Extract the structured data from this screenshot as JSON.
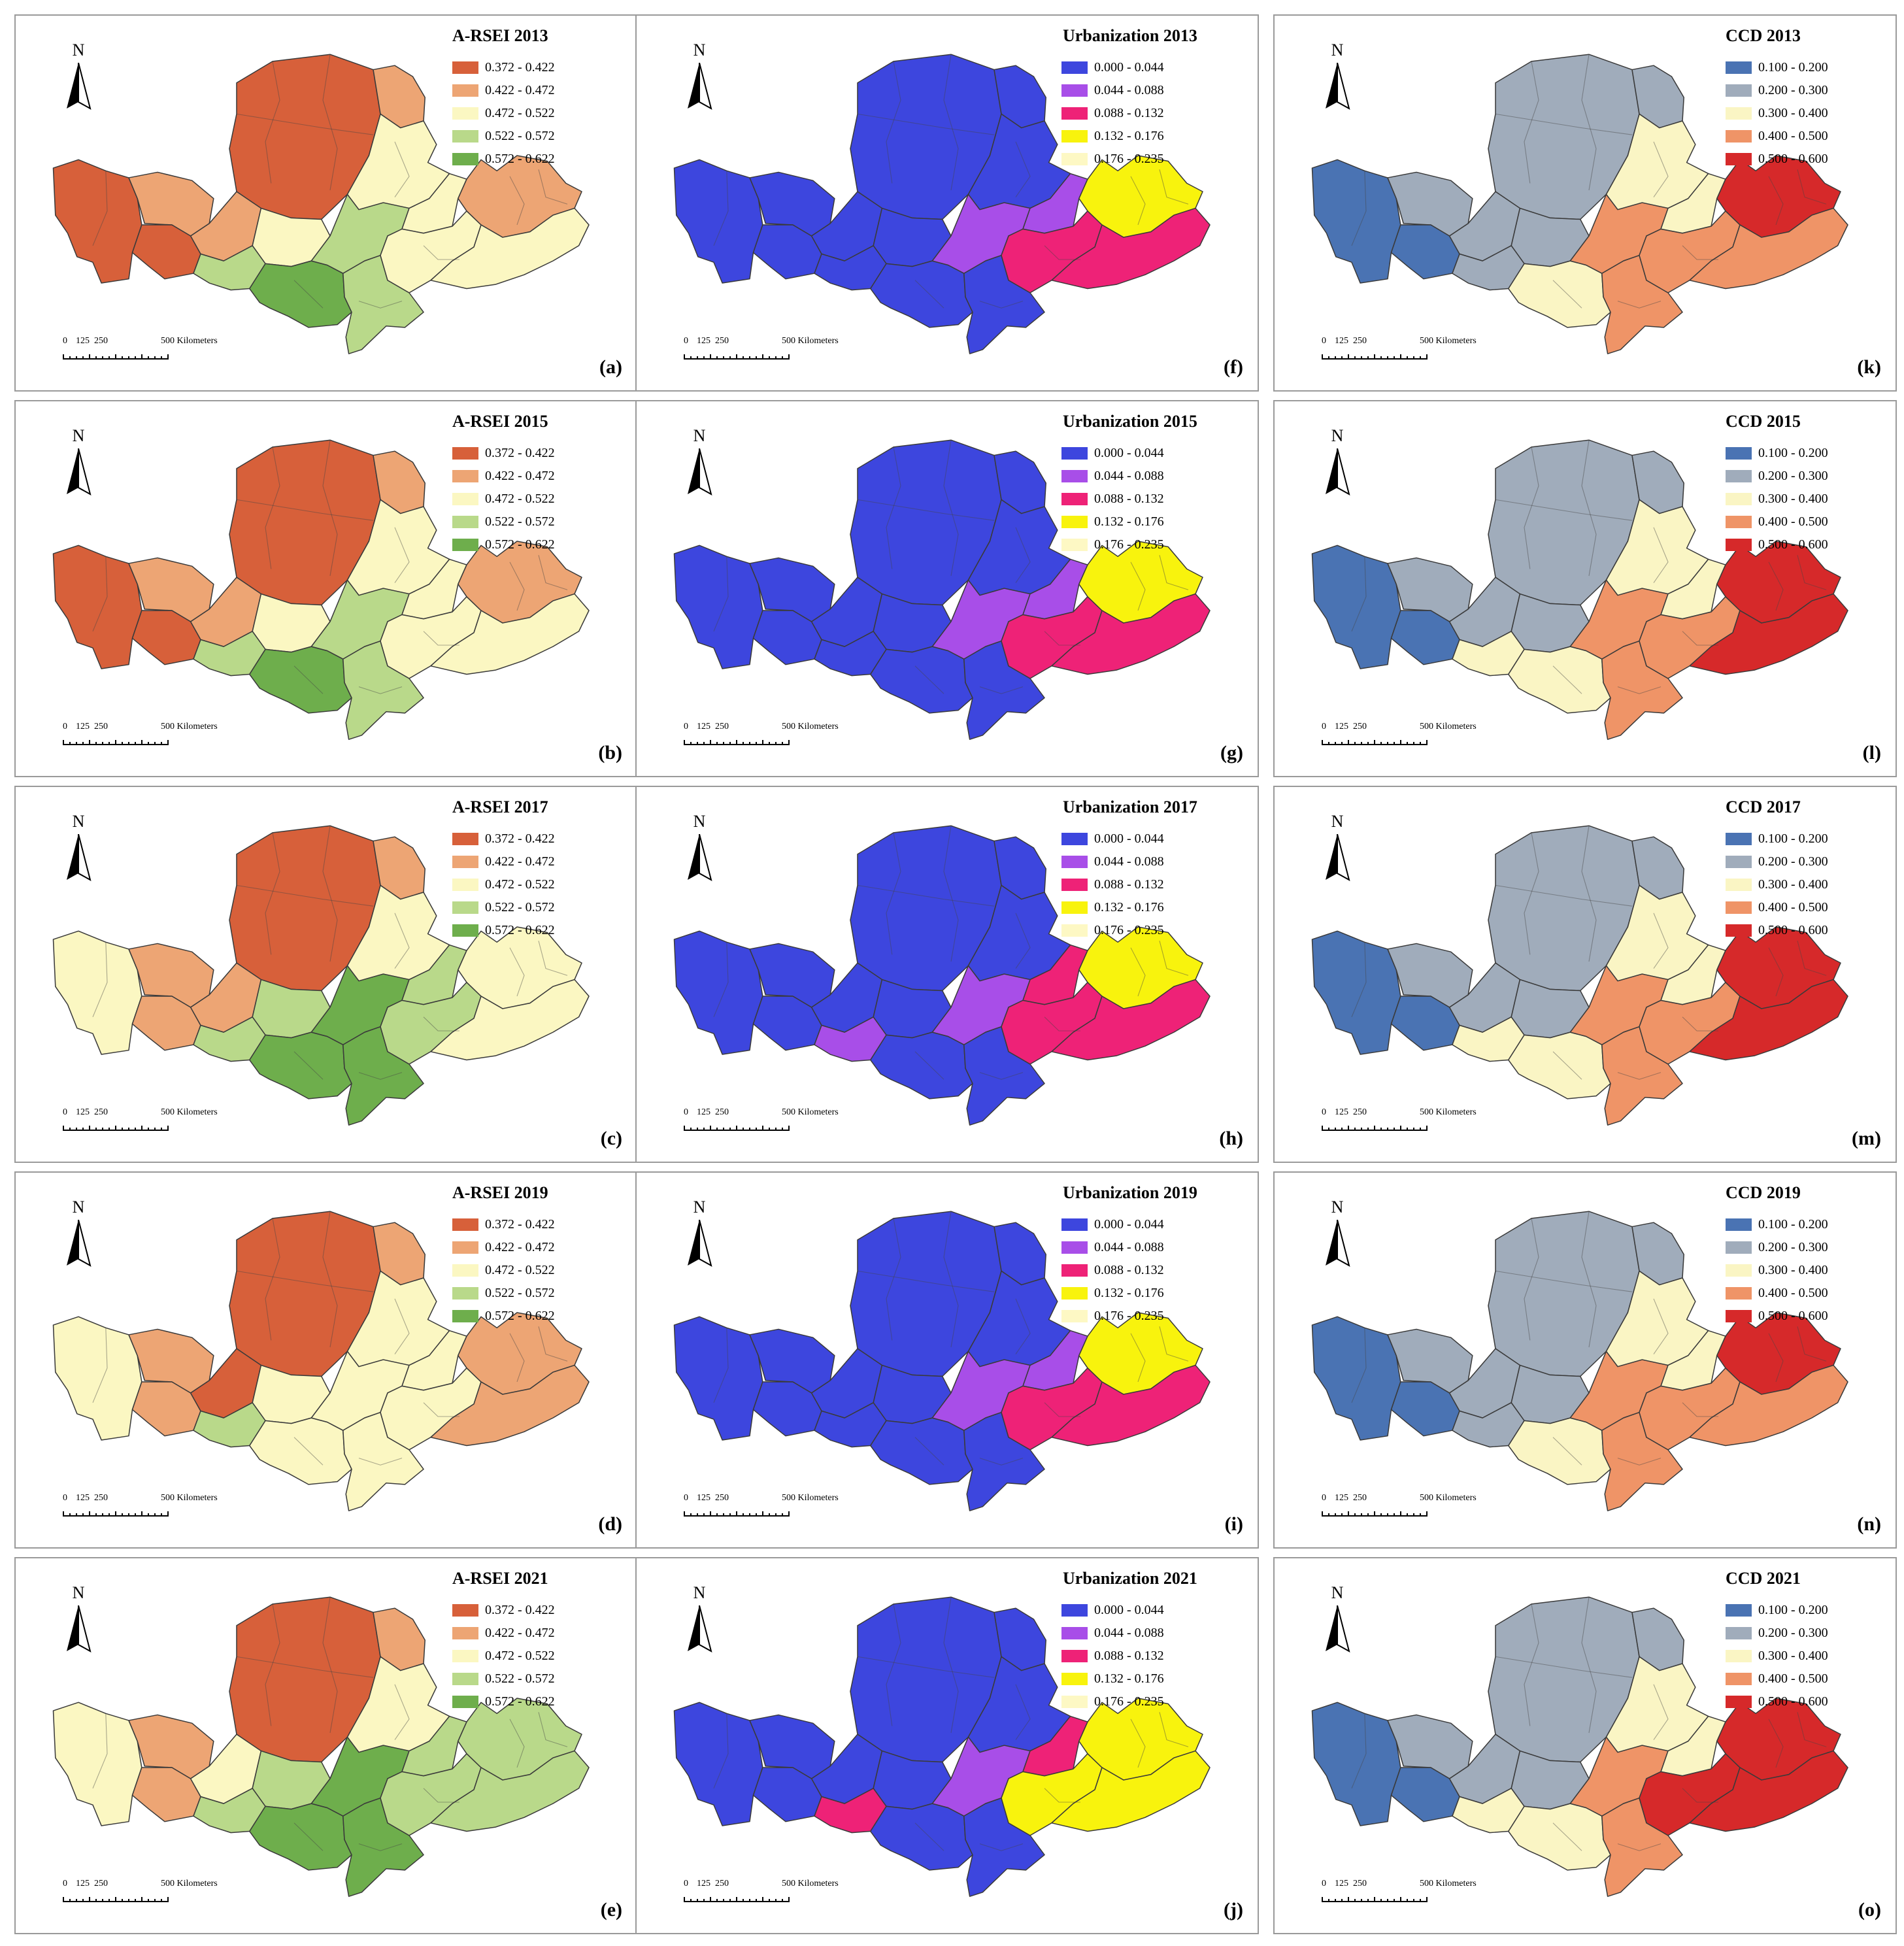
{
  "scale_bar": {
    "ticks": [
      "0",
      "125",
      "250"
    ],
    "far_label": "500 Kilometers"
  },
  "north_label": "N",
  "legends": {
    "arsei": {
      "labels": [
        "0.372 - 0.422",
        "0.422 - 0.472",
        "0.472 - 0.522",
        "0.522 - 0.572",
        "0.572 - 0.622"
      ],
      "colors": [
        "#d7603a",
        "#eda574",
        "#fbf7c2",
        "#b9d98a",
        "#6eae4c"
      ]
    },
    "urbanization": {
      "labels": [
        "0.000 - 0.044",
        "0.044 - 0.088",
        "0.088 - 0.132",
        "0.132 - 0.176",
        "0.176 - 0.235"
      ],
      "colors": [
        "#3d46de",
        "#a84ee8",
        "#ee2277",
        "#f8f30d",
        "#fdf8c4"
      ]
    },
    "ccd": {
      "labels": [
        "0.100 - 0.200",
        "0.200 - 0.300",
        "0.300 - 0.400",
        "0.400 - 0.500",
        "0.500 - 0.600"
      ],
      "colors": [
        "#4a73b3",
        "#a0acbb",
        "#faf5c4",
        "#ef9467",
        "#d6292a"
      ]
    }
  },
  "rows": [
    {
      "year": "2013",
      "arsei": {
        "title": "A-RSEI 2013",
        "label": "(a)",
        "class_idx": [
          0,
          1,
          0,
          0,
          1,
          1,
          2,
          2,
          3,
          4,
          3,
          3,
          2,
          2,
          1,
          2
        ]
      },
      "urbanization": {
        "title": "Urbanization 2013",
        "label": "(f)",
        "class_idx": [
          0,
          0,
          0,
          0,
          0,
          0,
          0,
          0,
          0,
          0,
          1,
          0,
          1,
          2,
          3,
          2
        ]
      },
      "ccd": {
        "title": "CCD 2013",
        "label": "(k)",
        "class_idx": [
          0,
          1,
          0,
          1,
          1,
          1,
          2,
          1,
          1,
          2,
          3,
          3,
          2,
          3,
          4,
          3
        ]
      }
    },
    {
      "year": "2015",
      "arsei": {
        "title": "A-RSEI 2015",
        "label": "(b)",
        "class_idx": [
          0,
          1,
          0,
          0,
          1,
          1,
          2,
          2,
          3,
          4,
          3,
          3,
          2,
          2,
          1,
          2
        ]
      },
      "urbanization": {
        "title": "Urbanization 2015",
        "label": "(g)",
        "class_idx": [
          0,
          0,
          0,
          0,
          0,
          0,
          0,
          0,
          0,
          0,
          1,
          0,
          1,
          2,
          3,
          2
        ]
      },
      "ccd": {
        "title": "CCD 2015",
        "label": "(l)",
        "class_idx": [
          0,
          1,
          0,
          1,
          1,
          1,
          2,
          1,
          2,
          2,
          3,
          3,
          2,
          3,
          4,
          4
        ]
      }
    },
    {
      "year": "2017",
      "arsei": {
        "title": "A-RSEI 2017",
        "label": "(c)",
        "class_idx": [
          2,
          1,
          1,
          0,
          1,
          1,
          2,
          3,
          3,
          4,
          4,
          4,
          3,
          3,
          2,
          2
        ]
      },
      "urbanization": {
        "title": "Urbanization 2017",
        "label": "(h)",
        "class_idx": [
          0,
          0,
          0,
          0,
          0,
          0,
          0,
          0,
          1,
          0,
          1,
          0,
          2,
          2,
          3,
          2
        ]
      },
      "ccd": {
        "title": "CCD 2017",
        "label": "(m)",
        "class_idx": [
          0,
          1,
          0,
          1,
          1,
          1,
          2,
          1,
          2,
          2,
          3,
          3,
          2,
          3,
          4,
          4
        ]
      }
    },
    {
      "year": "2019",
      "arsei": {
        "title": "A-RSEI 2019",
        "label": "(d)",
        "class_idx": [
          2,
          1,
          1,
          0,
          0,
          1,
          2,
          2,
          3,
          2,
          2,
          2,
          2,
          2,
          1,
          1
        ]
      },
      "urbanization": {
        "title": "Urbanization 2019",
        "label": "(i)",
        "class_idx": [
          0,
          0,
          0,
          0,
          0,
          0,
          0,
          0,
          0,
          0,
          1,
          0,
          1,
          2,
          3,
          2
        ]
      },
      "ccd": {
        "title": "CCD 2019",
        "label": "(n)",
        "class_idx": [
          0,
          1,
          0,
          1,
          1,
          1,
          2,
          1,
          1,
          2,
          3,
          3,
          2,
          3,
          4,
          3
        ]
      }
    },
    {
      "year": "2021",
      "arsei": {
        "title": "A-RSEI 2021",
        "label": "(e)",
        "class_idx": [
          2,
          1,
          1,
          0,
          2,
          1,
          2,
          3,
          3,
          4,
          4,
          4,
          3,
          3,
          3,
          3
        ]
      },
      "urbanization": {
        "title": "Urbanization 2021",
        "label": "(j)",
        "class_idx": [
          0,
          0,
          0,
          0,
          0,
          0,
          0,
          0,
          2,
          0,
          1,
          0,
          2,
          3,
          3,
          3
        ]
      },
      "ccd": {
        "title": "CCD 2021",
        "label": "(o)",
        "class_idx": [
          0,
          1,
          0,
          1,
          1,
          1,
          2,
          1,
          2,
          2,
          3,
          3,
          2,
          4,
          4,
          4
        ]
      }
    }
  ]
}
